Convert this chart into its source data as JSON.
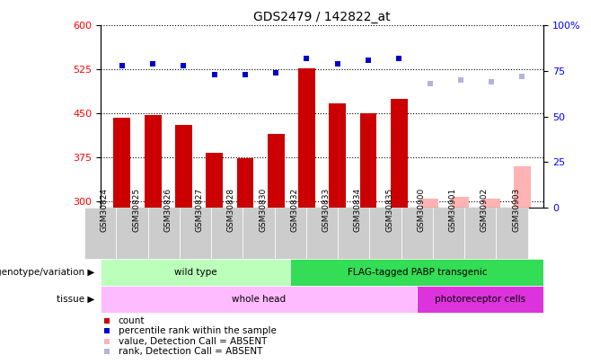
{
  "title": "GDS2479 / 142822_at",
  "samples": [
    "GSM30824",
    "GSM30825",
    "GSM30826",
    "GSM30827",
    "GSM30828",
    "GSM30830",
    "GSM30832",
    "GSM30833",
    "GSM30834",
    "GSM30835",
    "GSM30900",
    "GSM30901",
    "GSM30902",
    "GSM30903"
  ],
  "count_values": [
    443,
    447,
    430,
    383,
    374,
    415,
    527,
    468,
    450,
    475,
    305,
    308,
    305,
    360
  ],
  "count_absent": [
    false,
    false,
    false,
    false,
    false,
    false,
    false,
    false,
    false,
    false,
    true,
    true,
    true,
    true
  ],
  "rank_values": [
    78,
    79,
    78,
    73,
    73,
    74,
    82,
    79,
    81,
    82,
    68,
    70,
    69,
    72
  ],
  "rank_absent": [
    false,
    false,
    false,
    false,
    false,
    false,
    false,
    false,
    false,
    false,
    true,
    true,
    true,
    true
  ],
  "ylim_left": [
    290,
    600
  ],
  "ylim_right": [
    0,
    100
  ],
  "yticks_left": [
    300,
    375,
    450,
    525,
    600
  ],
  "yticks_right": [
    0,
    25,
    50,
    75,
    100
  ],
  "bar_color": "#cc0000",
  "bar_absent_color": "#ffb3b3",
  "rank_color": "#0000cc",
  "rank_absent_color": "#b3b3dd",
  "bar_width": 0.55,
  "genotype_groups": [
    {
      "label": "wild type",
      "start": 0,
      "end": 6,
      "color": "#bbffbb"
    },
    {
      "label": "FLAG-tagged PABP transgenic",
      "start": 6,
      "end": 14,
      "color": "#33dd55"
    }
  ],
  "tissue_groups": [
    {
      "label": "whole head",
      "start": 0,
      "end": 10,
      "color": "#ffbbff"
    },
    {
      "label": "photoreceptor cells",
      "start": 10,
      "end": 14,
      "color": "#dd33dd"
    }
  ],
  "genotype_label": "genotype/variation",
  "tissue_label": "tissue",
  "legend_items": [
    {
      "label": "count",
      "color": "#cc0000"
    },
    {
      "label": "percentile rank within the sample",
      "color": "#0000cc"
    },
    {
      "label": "value, Detection Call = ABSENT",
      "color": "#ffb3b3"
    },
    {
      "label": "rank, Detection Call = ABSENT",
      "color": "#b3b3dd"
    }
  ],
  "plot_bg_color": "#ffffff",
  "xticklabel_bg": "#cccccc",
  "dotted_line_color": "#000000"
}
